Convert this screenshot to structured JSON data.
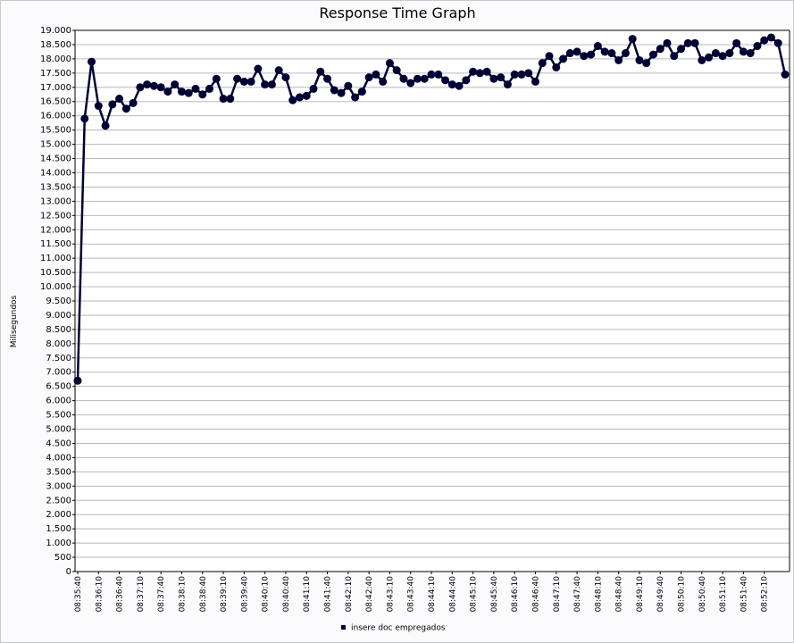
{
  "chart_data": {
    "type": "line",
    "title": "Response Time Graph",
    "y_label": "Milisegundos",
    "categories": [
      "08:35:40",
      null,
      null,
      "08:36:10",
      null,
      null,
      "08:36:40",
      null,
      null,
      "08:37:10",
      null,
      null,
      "08:37:40",
      null,
      null,
      "08:38:10",
      null,
      null,
      "08:38:40",
      null,
      null,
      "08:39:10",
      null,
      null,
      "08:39:40",
      null,
      null,
      "08:40:10",
      null,
      null,
      "08:40:40",
      null,
      null,
      "08:41:10",
      null,
      null,
      "08:41:40",
      null,
      null,
      "08:42:10",
      null,
      null,
      "08:42:40",
      null,
      null,
      "08:43:10",
      null,
      null,
      "08:43:40",
      null,
      null,
      "08:44:10",
      null,
      null,
      "08:44:40",
      null,
      null,
      "08:45:10",
      null,
      null,
      "08:45:40",
      null,
      null,
      "08:46:10",
      null,
      null,
      "08:46:40",
      null,
      null,
      "08:47:10",
      null,
      null,
      "08:47:40",
      null,
      null,
      "08:48:10",
      null,
      null,
      "08:48:40",
      null,
      null,
      "08:49:10",
      null,
      null,
      "08:49:40",
      null,
      null,
      "08:50:10",
      null,
      null,
      "08:50:40",
      null,
      null,
      "08:51:10",
      null,
      null,
      "08:51:40",
      null,
      null,
      "08:52:10",
      null,
      null,
      null
    ],
    "series": [
      {
        "name": "insere doc empregados",
        "color": "#000033",
        "values": [
          6700,
          15900,
          17900,
          16350,
          15650,
          16400,
          16600,
          16250,
          16450,
          17000,
          17100,
          17050,
          17000,
          16850,
          17100,
          16850,
          16800,
          16950,
          16750,
          16950,
          17300,
          16600,
          16600,
          17300,
          17200,
          17200,
          17650,
          17100,
          17100,
          17600,
          17350,
          16550,
          16650,
          16700,
          16950,
          17550,
          17300,
          16900,
          16800,
          17050,
          16650,
          16850,
          17350,
          17450,
          17200,
          17850,
          17600,
          17300,
          17150,
          17300,
          17300,
          17450,
          17450,
          17250,
          17100,
          17050,
          17250,
          17550,
          17500,
          17550,
          17300,
          17350,
          17100,
          17450,
          17450,
          17500,
          17200,
          17850,
          18100,
          17700,
          18000,
          18200,
          18250,
          18100,
          18150,
          18450,
          18250,
          18200,
          17950,
          18200,
          18700,
          17950,
          17850,
          18150,
          18350,
          18550,
          18100,
          18350,
          18550,
          18550,
          17950,
          18050,
          18200,
          18100,
          18200,
          18550,
          18250,
          18200,
          18450,
          18650,
          18750,
          18550,
          17450
        ]
      }
    ],
    "ylim": [
      0,
      19000
    ],
    "yticks": [
      0,
      500,
      {
        "value": 1000,
        "label": "1.000"
      },
      {
        "value": 1500,
        "label": "1.500"
      },
      {
        "value": 2000,
        "label": "2.000"
      },
      {
        "value": 2500,
        "label": "2.500"
      },
      {
        "value": 3000,
        "label": "3.000"
      },
      {
        "value": 3500,
        "label": "3.500"
      },
      {
        "value": 4000,
        "label": "4.000"
      },
      {
        "value": 4500,
        "label": "4.500"
      },
      {
        "value": 5000,
        "label": "5.000"
      },
      {
        "value": 5500,
        "label": "5.500"
      },
      {
        "value": 6000,
        "label": "6.000"
      },
      {
        "value": 6500,
        "label": "6.500"
      },
      {
        "value": 7000,
        "label": "7.000"
      },
      {
        "value": 7500,
        "label": "7.500"
      },
      {
        "value": 8000,
        "label": "8.000"
      },
      {
        "value": 8500,
        "label": "8.500"
      },
      {
        "value": 9000,
        "label": "9.000"
      },
      {
        "value": 9500,
        "label": "9.500"
      },
      {
        "value": 10000,
        "label": "10.000"
      },
      {
        "value": 10500,
        "label": "10.500"
      },
      {
        "value": 11000,
        "label": "11.000"
      },
      {
        "value": 11500,
        "label": "11.500"
      },
      {
        "value": 12000,
        "label": "12.000"
      },
      {
        "value": 12500,
        "label": "12.500"
      },
      {
        "value": 13000,
        "label": "13.000"
      },
      {
        "value": 13500,
        "label": "13.500"
      },
      {
        "value": 14000,
        "label": "14.000"
      },
      {
        "value": 14500,
        "label": "14.500"
      },
      {
        "value": 15000,
        "label": "15.000"
      },
      {
        "value": 15500,
        "label": "15.500"
      },
      {
        "value": 16000,
        "label": "16.000"
      },
      {
        "value": 16500,
        "label": "16.500"
      },
      {
        "value": 17000,
        "label": "17.000"
      },
      {
        "value": 17500,
        "label": "17.500"
      },
      {
        "value": 18000,
        "label": "18.000"
      },
      {
        "value": 18500,
        "label": "18.500"
      },
      {
        "value": 19000,
        "label": "19.000"
      }
    ],
    "grid": true
  }
}
